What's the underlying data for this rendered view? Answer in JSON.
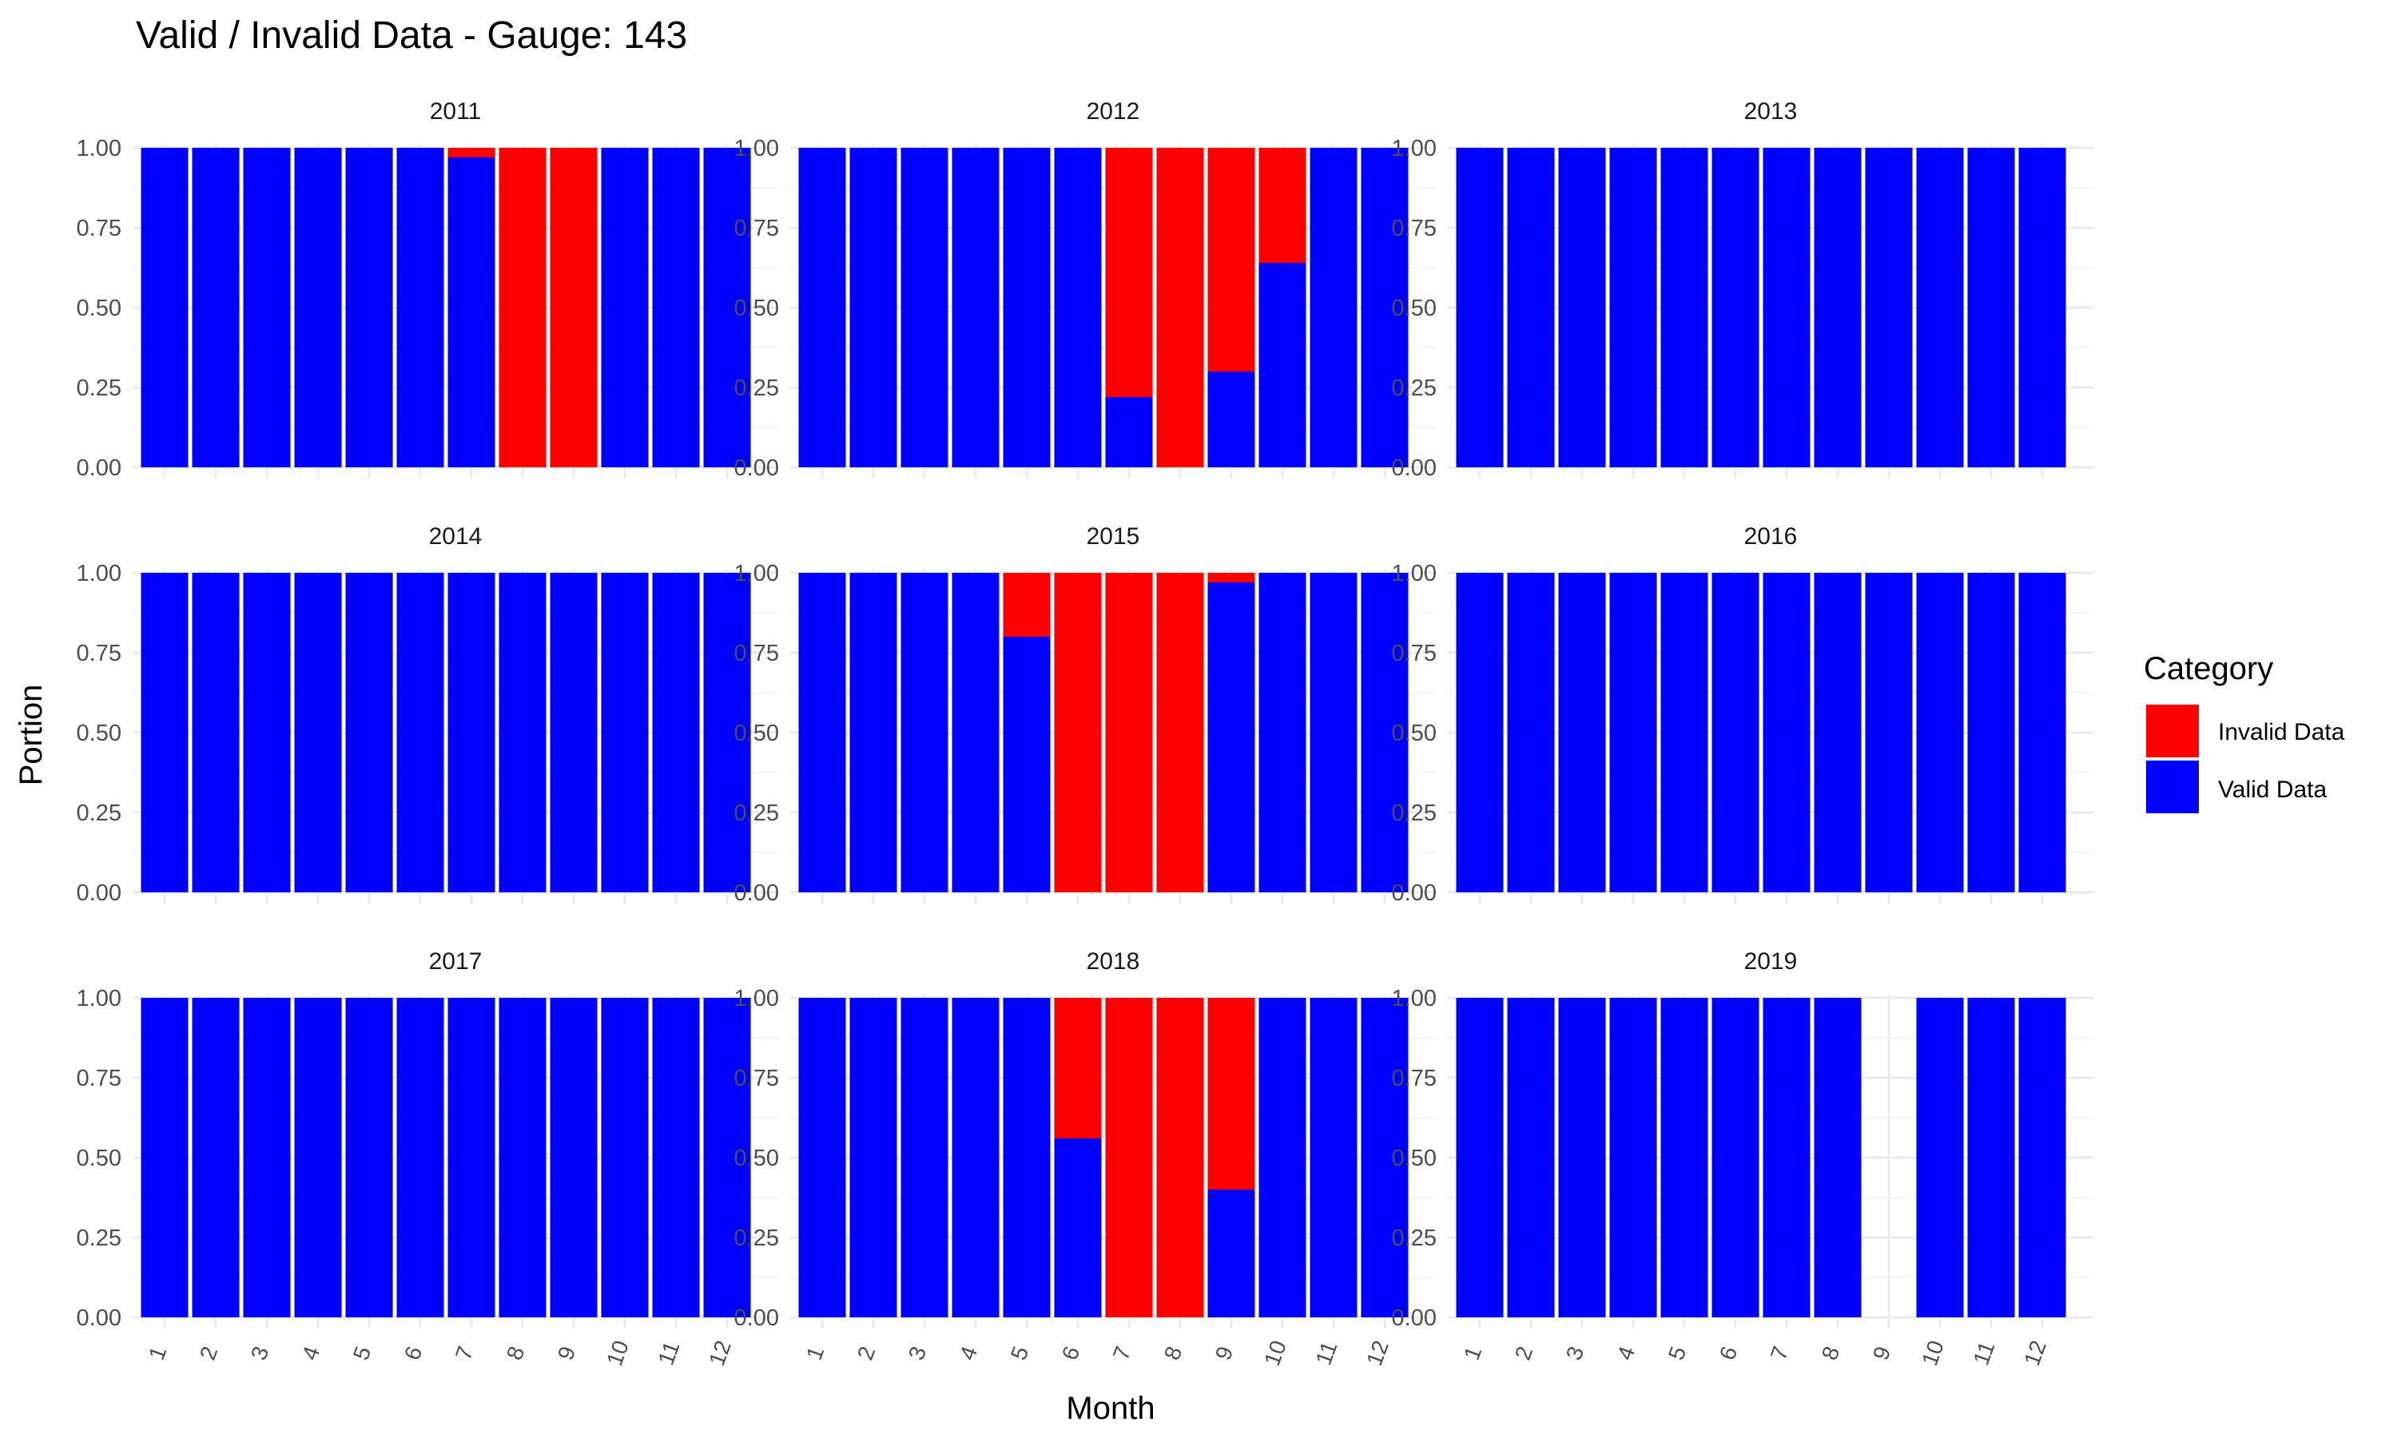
{
  "chart_data": {
    "type": "bar",
    "stacked": true,
    "facet_by": "year",
    "title": "Valid / Invalid Data - Gauge: 143",
    "xlabel": "Month",
    "ylabel": "Portion",
    "ylim": [
      0,
      1
    ],
    "yticks": [
      "0.00",
      "0.25",
      "0.50",
      "0.75",
      "1.00"
    ],
    "categories": [
      "1",
      "2",
      "3",
      "4",
      "5",
      "6",
      "7",
      "8",
      "9",
      "10",
      "11",
      "12"
    ],
    "legend": {
      "title": "Category",
      "position": "right",
      "entries": [
        {
          "name": "Invalid Data",
          "color": "#ff0000"
        },
        {
          "name": "Valid Data",
          "color": "#0000ff"
        }
      ]
    },
    "colors": {
      "invalid": "#ff0000",
      "valid": "#0000ff"
    },
    "panels": [
      {
        "label": "2011",
        "valid": [
          1,
          1,
          1,
          1,
          1,
          1,
          0.97,
          0,
          0,
          1,
          1,
          1
        ]
      },
      {
        "label": "2012",
        "valid": [
          1,
          1,
          1,
          1,
          1,
          1,
          0.22,
          0,
          0.3,
          0.64,
          1,
          1
        ]
      },
      {
        "label": "2013",
        "valid": [
          1,
          1,
          1,
          1,
          1,
          1,
          1,
          1,
          1,
          1,
          1,
          1
        ]
      },
      {
        "label": "2014",
        "valid": [
          1,
          1,
          1,
          1,
          1,
          1,
          1,
          1,
          1,
          1,
          1,
          1
        ]
      },
      {
        "label": "2015",
        "valid": [
          1,
          1,
          1,
          1,
          0.8,
          0,
          0,
          0,
          0.97,
          1,
          1,
          1
        ]
      },
      {
        "label": "2016",
        "valid": [
          1,
          1,
          1,
          1,
          1,
          1,
          1,
          1,
          1,
          1,
          1,
          1
        ]
      },
      {
        "label": "2017",
        "valid": [
          1,
          1,
          1,
          1,
          1,
          1,
          1,
          1,
          1,
          1,
          1,
          1
        ]
      },
      {
        "label": "2018",
        "valid": [
          1,
          1,
          1,
          1,
          1,
          0.56,
          0,
          0,
          0.4,
          1,
          1,
          1
        ]
      },
      {
        "label": "2019",
        "valid": [
          1,
          1,
          1,
          1,
          1,
          1,
          1,
          1,
          null,
          1,
          1,
          1
        ]
      }
    ]
  }
}
